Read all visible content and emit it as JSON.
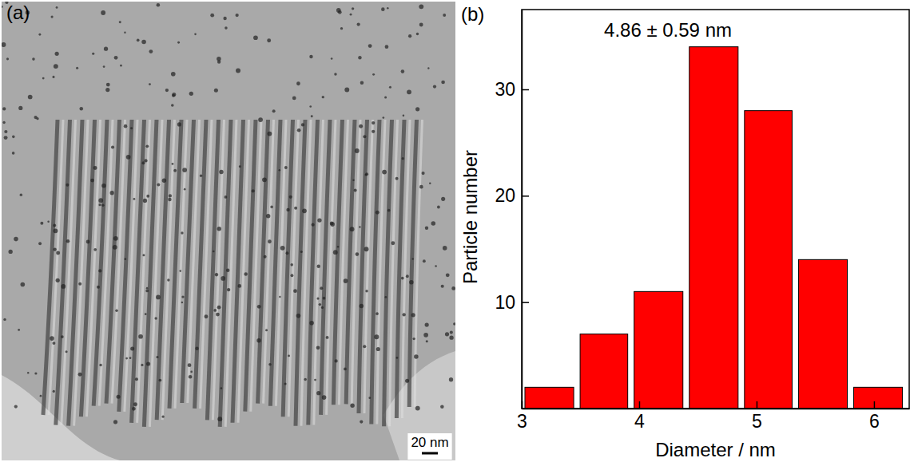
{
  "figure": {
    "panels": [
      {
        "label": "(a)",
        "scale_bar": "20 nm"
      },
      {
        "label": "(b)"
      }
    ]
  },
  "chart_data": {
    "type": "histogram",
    "title": "4.86 ± 0.59 nm",
    "x_label": "Diameter / nm",
    "y_label": "Particle number",
    "bins": [
      3.0,
      3.47,
      3.93,
      4.4,
      4.87,
      5.33,
      5.8,
      6.27
    ],
    "values": [
      2,
      7,
      11,
      34,
      28,
      14,
      2
    ],
    "color": "#ff0000",
    "xlim": [
      3,
      6.3
    ],
    "xticks": [
      3,
      4,
      5,
      6
    ],
    "ylim": [
      0,
      37.5
    ],
    "yticks": [
      10,
      20,
      30
    ],
    "grid": false
  }
}
